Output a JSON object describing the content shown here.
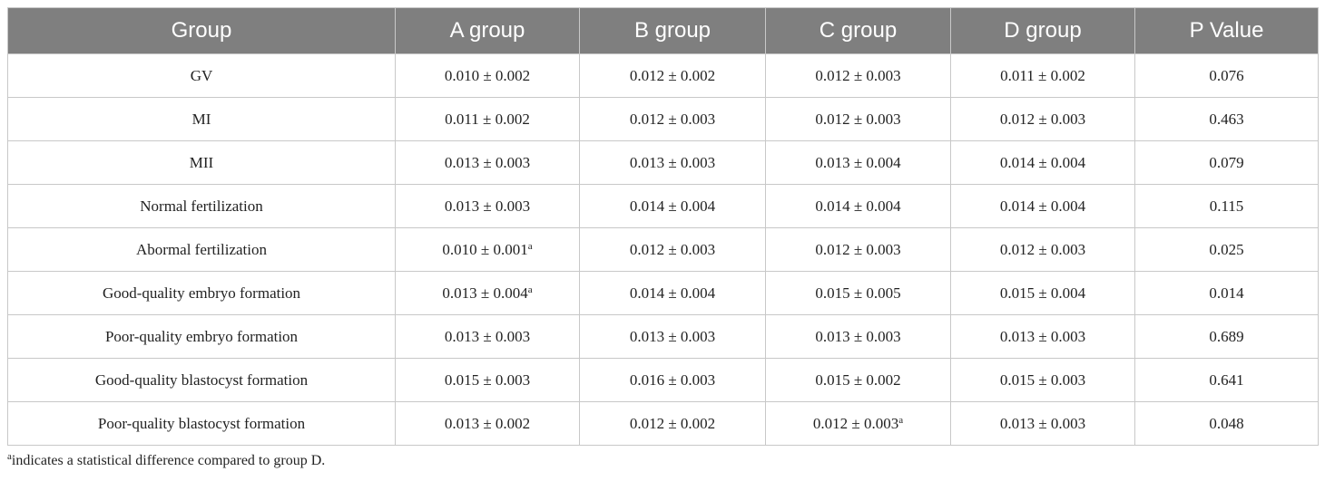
{
  "table": {
    "header": [
      "Group",
      "A group",
      "B group",
      "C group",
      "D group",
      "P Value"
    ],
    "rows": [
      [
        "GV",
        "0.010 ± 0.002",
        "0.012 ± 0.002",
        "0.012 ± 0.003",
        "0.011 ± 0.002",
        "0.076"
      ],
      [
        "MI",
        "0.011 ± 0.002",
        "0.012 ± 0.003",
        "0.012 ± 0.003",
        "0.012 ± 0.003",
        "0.463"
      ],
      [
        "MII",
        "0.013 ± 0.003",
        "0.013 ± 0.003",
        "0.013 ± 0.004",
        "0.014 ± 0.004",
        "0.079"
      ],
      [
        "Normal fertilization",
        "0.013 ± 0.003",
        "0.014 ± 0.004",
        "0.014 ± 0.004",
        "0.014 ± 0.004",
        "0.115"
      ],
      [
        "Abormal fertilization",
        {
          "text": "0.010 ± 0.001",
          "sup": "a"
        },
        "0.012 ± 0.003",
        "0.012 ± 0.003",
        "0.012 ± 0.003",
        "0.025"
      ],
      [
        "Good-quality embryo formation",
        {
          "text": "0.013 ± 0.004",
          "sup": "a"
        },
        "0.014 ± 0.004",
        "0.015 ± 0.005",
        "0.015 ± 0.004",
        "0.014"
      ],
      [
        "Poor-quality embryo formation",
        "0.013 ± 0.003",
        "0.013 ± 0.003",
        "0.013 ± 0.003",
        "0.013 ± 0.003",
        "0.689"
      ],
      [
        "Good-quality blastocyst formation",
        "0.015 ± 0.003",
        "0.016 ± 0.003",
        "0.015 ± 0.002",
        "0.015 ± 0.003",
        "0.641"
      ],
      [
        "Poor-quality blastocyst formation",
        "0.013 ± 0.002",
        "0.012 ± 0.002",
        {
          "text": "0.012 ± 0.003",
          "sup": "a"
        },
        "0.013 ± 0.003",
        "0.048"
      ]
    ]
  },
  "footnote": {
    "sup": "a",
    "text": "indicates a statistical difference compared to group D."
  }
}
